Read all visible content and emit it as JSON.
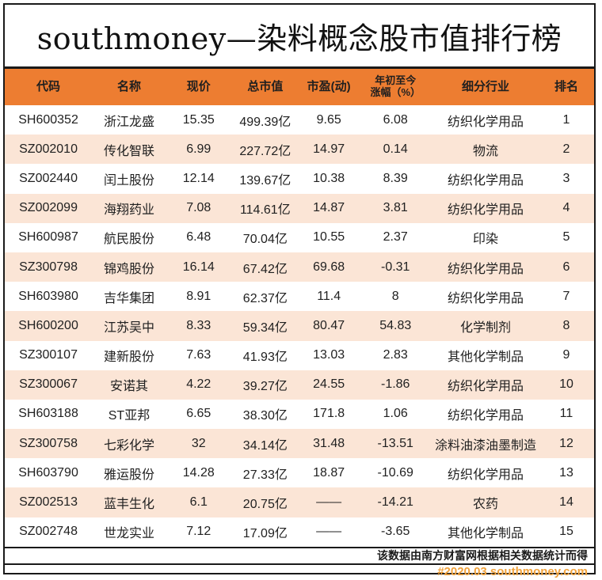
{
  "title": "southmoney—染料概念股市值排行榜",
  "chart_data": {
    "type": "table",
    "title": "southmoney—染料概念股市值排行榜",
    "columns": [
      "代码",
      "名称",
      "现价",
      "总市值",
      "市盈(动)",
      "年初至今涨幅（%）",
      "细分行业",
      "排名"
    ],
    "rows": [
      {
        "code": "SH600352",
        "name": "浙江龙盛",
        "price": "15.35",
        "market_cap": "499.39亿",
        "pe": "9.65",
        "ytd_change": "6.08",
        "industry": "纺织化学用品",
        "rank": "1"
      },
      {
        "code": "SZ002010",
        "name": "传化智联",
        "price": "6.99",
        "market_cap": "227.72亿",
        "pe": "14.97",
        "ytd_change": "0.14",
        "industry": "物流",
        "rank": "2"
      },
      {
        "code": "SZ002440",
        "name": "闰土股份",
        "price": "12.14",
        "market_cap": "139.67亿",
        "pe": "10.38",
        "ytd_change": "8.39",
        "industry": "纺织化学用品",
        "rank": "3"
      },
      {
        "code": "SZ002099",
        "name": "海翔药业",
        "price": "7.08",
        "market_cap": "114.61亿",
        "pe": "14.87",
        "ytd_change": "3.81",
        "industry": "纺织化学用品",
        "rank": "4"
      },
      {
        "code": "SH600987",
        "name": "航民股份",
        "price": "6.48",
        "market_cap": "70.04亿",
        "pe": "10.55",
        "ytd_change": "2.37",
        "industry": "印染",
        "rank": "5"
      },
      {
        "code": "SZ300798",
        "name": "锦鸡股份",
        "price": "16.14",
        "market_cap": "67.42亿",
        "pe": "69.68",
        "ytd_change": "-0.31",
        "industry": "纺织化学用品",
        "rank": "6"
      },
      {
        "code": "SH603980",
        "name": "吉华集团",
        "price": "8.91",
        "market_cap": "62.37亿",
        "pe": "11.4",
        "ytd_change": "8",
        "industry": "纺织化学用品",
        "rank": "7"
      },
      {
        "code": "SH600200",
        "name": "江苏吴中",
        "price": "8.33",
        "market_cap": "59.34亿",
        "pe": "80.47",
        "ytd_change": "54.83",
        "industry": "化学制剂",
        "rank": "8"
      },
      {
        "code": "SZ300107",
        "name": "建新股份",
        "price": "7.63",
        "market_cap": "41.93亿",
        "pe": "13.03",
        "ytd_change": "2.83",
        "industry": "其他化学制品",
        "rank": "9"
      },
      {
        "code": "SZ300067",
        "name": "安诺其",
        "price": "4.22",
        "market_cap": "39.27亿",
        "pe": "24.55",
        "ytd_change": "-1.86",
        "industry": "纺织化学用品",
        "rank": "10"
      },
      {
        "code": "SH603188",
        "name": "ST亚邦",
        "price": "6.65",
        "market_cap": "38.30亿",
        "pe": "171.8",
        "ytd_change": "1.06",
        "industry": "纺织化学用品",
        "rank": "11"
      },
      {
        "code": "SZ300758",
        "name": "七彩化学",
        "price": "32",
        "market_cap": "34.14亿",
        "pe": "31.48",
        "ytd_change": "-13.51",
        "industry": "涂料油漆油墨制造",
        "rank": "12"
      },
      {
        "code": "SH603790",
        "name": "雅运股份",
        "price": "14.28",
        "market_cap": "27.33亿",
        "pe": "18.87",
        "ytd_change": "-10.69",
        "industry": "纺织化学用品",
        "rank": "13"
      },
      {
        "code": "SZ002513",
        "name": "蓝丰生化",
        "price": "6.1",
        "market_cap": "20.75亿",
        "pe": "——",
        "ytd_change": "-14.21",
        "industry": "农药",
        "rank": "14"
      },
      {
        "code": "SZ002748",
        "name": "世龙实业",
        "price": "7.12",
        "market_cap": "17.09亿",
        "pe": "——",
        "ytd_change": "-3.65",
        "industry": "其他化学制品",
        "rank": "15"
      }
    ]
  },
  "footer": {
    "source_note": "该数据由南方财富网根据相关数据统计而得",
    "stamp": "#2020.03 southmoney.com"
  },
  "colors": {
    "header_bg": "#ED7D31",
    "row_alt_bg": "#FBE5D6",
    "stamp_text": "#F2A33C",
    "border": "#1A1A1A"
  }
}
